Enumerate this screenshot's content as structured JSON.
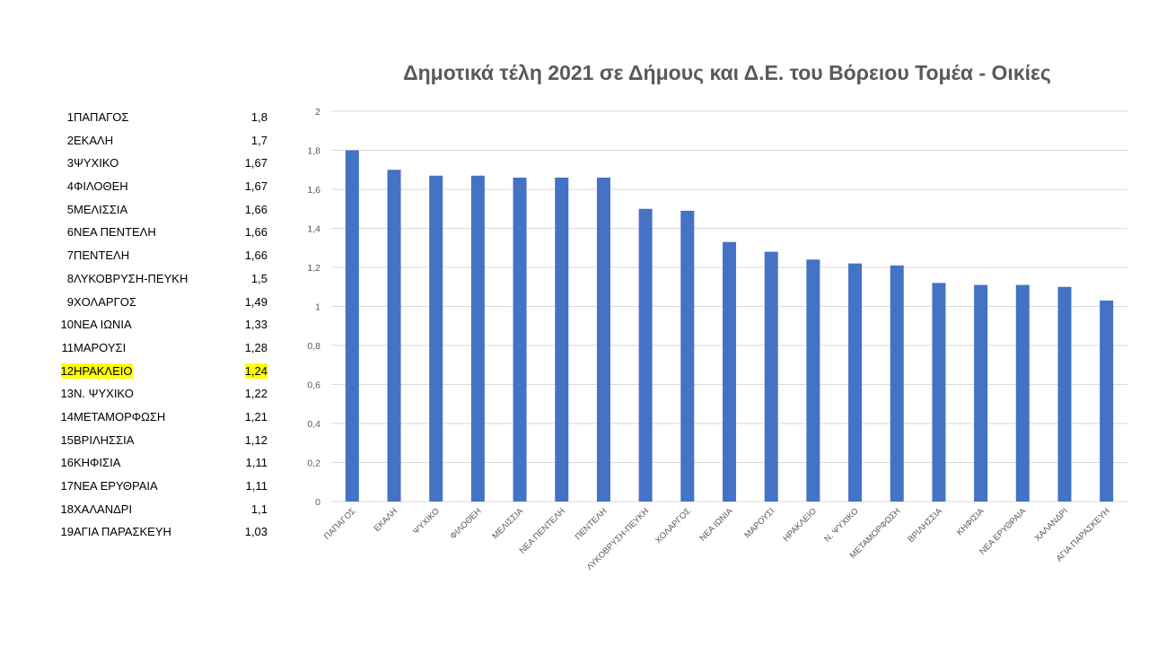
{
  "title": "Δημοτικά τέλη 2021 σε Δήμους και Δ.Ε. του Βόρειου Τομέα - Οικίες",
  "table": {
    "rows": [
      {
        "rank": "1",
        "name": "ΠΑΠΑΓΟΣ",
        "value": "1,8",
        "highlight": false
      },
      {
        "rank": "2",
        "name": "ΕΚΑΛΗ",
        "value": "1,7",
        "highlight": false
      },
      {
        "rank": "3",
        "name": "ΨΥΧΙΚΟ",
        "value": "1,67",
        "highlight": false
      },
      {
        "rank": "4",
        "name": "ΦΙΛΟΘΕΗ",
        "value": "1,67",
        "highlight": false
      },
      {
        "rank": "5",
        "name": "ΜΕΛΙΣΣΙΑ",
        "value": "1,66",
        "highlight": false
      },
      {
        "rank": "6",
        "name": "ΝΕΑ ΠΕΝΤΕΛΗ",
        "value": "1,66",
        "highlight": false
      },
      {
        "rank": "7",
        "name": "ΠΕΝΤΕΛΗ",
        "value": "1,66",
        "highlight": false
      },
      {
        "rank": "8",
        "name": "ΛΥΚΟΒΡΥΣΗ-ΠΕΥΚΗ",
        "value": "1,5",
        "highlight": false
      },
      {
        "rank": "9",
        "name": "ΧΟΛΑΡΓΟΣ",
        "value": "1,49",
        "highlight": false
      },
      {
        "rank": "10",
        "name": "ΝΕΑ ΙΩΝΙΑ",
        "value": "1,33",
        "highlight": false
      },
      {
        "rank": "11",
        "name": "ΜΑΡΟΥΣΙ",
        "value": "1,28",
        "highlight": false
      },
      {
        "rank": "12",
        "name": "ΗΡΑΚΛΕΙΟ",
        "value": "1,24",
        "highlight": true
      },
      {
        "rank": "13",
        "name": "Ν. ΨΥΧΙΚΟ",
        "value": "1,22",
        "highlight": false
      },
      {
        "rank": "14",
        "name": "ΜΕΤΑΜΟΡΦΩΣΗ",
        "value": "1,21",
        "highlight": false
      },
      {
        "rank": "15",
        "name": "ΒΡΙΛΗΣΣΙΑ",
        "value": "1,12",
        "highlight": false
      },
      {
        "rank": "16",
        "name": "ΚΗΦΙΣΙΑ",
        "value": "1,11",
        "highlight": false
      },
      {
        "rank": "17",
        "name": "ΝΕΑ ΕΡΥΘΡΑΙΑ",
        "value": "1,11",
        "highlight": false
      },
      {
        "rank": "18",
        "name": "ΧΑΛΑΝΔΡΙ",
        "value": "1,1",
        "highlight": false
      },
      {
        "rank": "19",
        "name": "ΑΓΙΑ ΠΑΡΑΣΚΕΥΗ",
        "value": "1,03",
        "highlight": false
      }
    ],
    "highlight_color": "#ffff00"
  },
  "chart_data": {
    "type": "bar",
    "title": "Δημοτικά τέλη 2021 σε Δήμους και Δ.Ε. του Βόρειου Τομέα - Οικίες",
    "categories": [
      "ΠΑΠΑΓΟΣ",
      "ΕΚΑΛΗ",
      "ΨΥΧΙΚΟ",
      "ΦΙΛΟΘΕΗ",
      "ΜΕΛΙΣΣΙΑ",
      "ΝΕΑ ΠΕΝΤΕΛΗ",
      "ΠΕΝΤΕΛΗ",
      "ΛΥΚΟΒΡΥΣΗ-ΠΕΥΚΗ",
      "ΧΟΛΑΡΓΟΣ",
      "ΝΕΑ ΙΩΝΙΑ",
      "ΜΑΡΟΥΣΙ",
      "ΗΡΑΚΛΕΙΟ",
      "Ν. ΨΥΧΙΚΟ",
      "ΜΕΤΑΜΟΡΦΩΣΗ",
      "ΒΡΙΛΗΣΣΙΑ",
      "ΚΗΦΙΣΙΑ",
      "ΝΕΑ ΕΡΥΘΡΑΙΑ",
      "ΧΑΛΑΝΔΡΙ",
      "ΑΓΙΑ ΠΑΡΑΣΚΕΥΗ"
    ],
    "values": [
      1.8,
      1.7,
      1.67,
      1.67,
      1.66,
      1.66,
      1.66,
      1.5,
      1.49,
      1.33,
      1.28,
      1.24,
      1.22,
      1.21,
      1.12,
      1.11,
      1.11,
      1.1,
      1.03
    ],
    "xlabel": "",
    "ylabel": "",
    "ylim": [
      0,
      2
    ],
    "yticks": [
      0,
      0.2,
      0.4,
      0.6,
      0.8,
      1,
      1.2,
      1.4,
      1.6,
      1.8,
      2
    ],
    "ytick_labels": [
      "0",
      "0,2",
      "0,4",
      "0,6",
      "0,8",
      "1",
      "1,2",
      "1,4",
      "1,6",
      "1,8",
      "2"
    ],
    "grid": true,
    "legend": "none",
    "bar_color": "#4472c4",
    "grid_color": "#d9d9d9"
  }
}
